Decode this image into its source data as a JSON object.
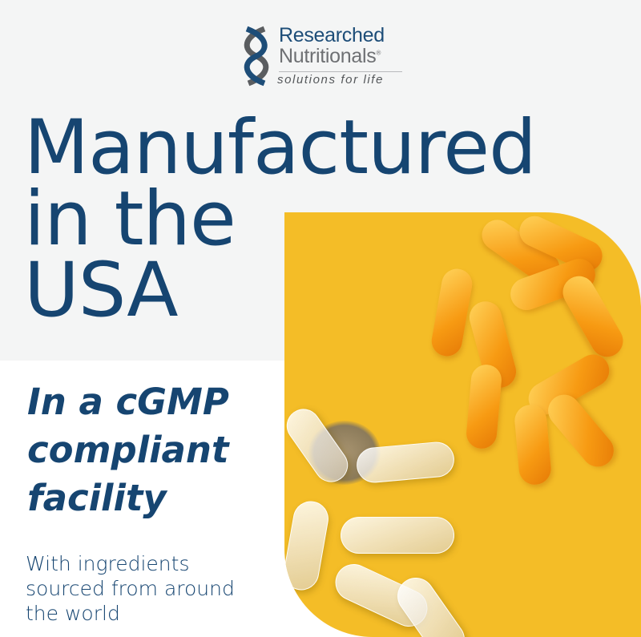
{
  "logo": {
    "line1": "Researched",
    "line2": "Nutritionals",
    "registered": "®",
    "tagline": "solutions for life",
    "icon": "dna-helix-icon"
  },
  "headline": [
    "Manufactured",
    "in the",
    "USA"
  ],
  "subheadline": [
    "In a cGMP",
    "compliant",
    "facility"
  ],
  "body": [
    "With ingredients",
    "sourced from around",
    "the world"
  ],
  "colors": {
    "text": "#164571",
    "background": "#f4f5f5",
    "photo": "#f4bd27"
  }
}
